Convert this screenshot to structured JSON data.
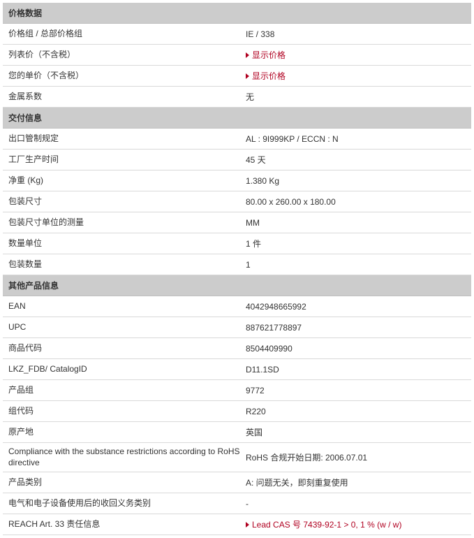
{
  "colors": {
    "header_bg": "#cccccc",
    "border": "#d9d9d9",
    "text": "#333333",
    "link": "#b00020"
  },
  "sections": {
    "price": {
      "title": "价格数据",
      "r0_label": "价格组 / 总部价格组",
      "r0_value": "IE / 338",
      "r1_label": "列表价（不含税）",
      "r1_link": "显示价格",
      "r2_label": "您的单价（不含税）",
      "r2_link": "显示价格",
      "r3_label": "金属系数",
      "r3_value": "无"
    },
    "delivery": {
      "title": "交付信息",
      "r0_label": "出口管制规定",
      "r0_value": "AL : 9I999KP / ECCN : N",
      "r1_label": "工厂生产时间",
      "r1_value": "45 天",
      "r2_label": "净重 (Kg)",
      "r2_value": "1.380 Kg",
      "r3_label": "包装尺寸",
      "r3_value": "80.00 x 260.00 x 180.00",
      "r4_label": "包装尺寸单位的测量",
      "r4_value": "MM",
      "r5_label": "数量单位",
      "r5_value": "1 件",
      "r6_label": "包装数量",
      "r6_value": "1"
    },
    "other": {
      "title": "其他产品信息",
      "r0_label": "EAN",
      "r0_value": "4042948665992",
      "r1_label": "UPC",
      "r1_value": "887621778897",
      "r2_label": "商品代码",
      "r2_value": "8504409990",
      "r3_label": "LKZ_FDB/ CatalogID",
      "r3_value": "D11.1SD",
      "r4_label": "产品组",
      "r4_value": "9772",
      "r5_label": "组代码",
      "r5_value": "R220",
      "r6_label": "原产地",
      "r6_value": "英国",
      "r7_label": "Compliance with the substance restrictions according to RoHS directive",
      "r7_value": "RoHS 合规开始日期: 2006.07.01",
      "r8_label": "产品类别",
      "r8_value": "A: 问题无关，即刻重复使用",
      "r9_label": "电气和电子设备使用后的收回义务类别",
      "r9_value": "-",
      "r10_label": "REACH Art. 33 责任信息",
      "r10_link": "Lead CAS 号 7439-92-1 > 0, 1 % (w / w)"
    }
  }
}
